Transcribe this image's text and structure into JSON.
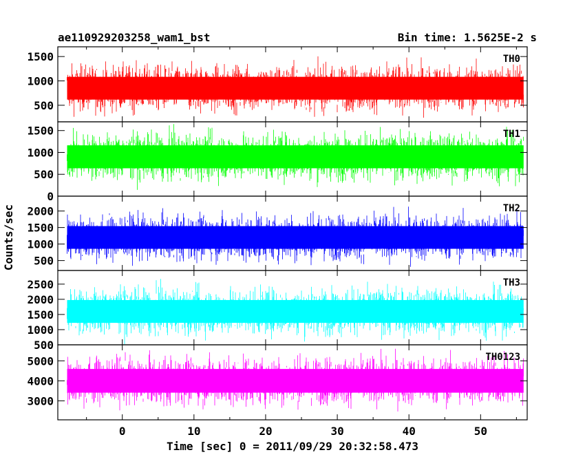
{
  "chart_data": {
    "type": "line",
    "title_left": "ae110929203258_wam1_bst",
    "title_right": "Bin time: 1.5625E-2 s",
    "xlabel": "Time [sec] 0 = 2011/09/29 20:32:58.473",
    "ylabel": "Counts/sec",
    "xlim": [
      -9,
      56.5
    ],
    "x_ticks": [
      0,
      10,
      20,
      30,
      40,
      50
    ],
    "x_tick_labels": [
      "0",
      "10",
      "20",
      "30",
      "40",
      "50"
    ],
    "x_data_range": [
      -7.7,
      56
    ],
    "panels": [
      {
        "name": "TH0",
        "color": "#ff0000",
        "ylim": [
          160,
          1700
        ],
        "ticks": [
          500,
          1000,
          1500
        ],
        "tick_labels": [
          "500",
          "1000",
          "1500"
        ],
        "mean": 850,
        "low": 220,
        "high": 1600
      },
      {
        "name": "TH1",
        "color": "#00ff00",
        "ylim": [
          0,
          1700
        ],
        "ticks": [
          0,
          500,
          1000,
          1500
        ],
        "tick_labels": [
          "0",
          "500",
          "1000",
          "1500"
        ],
        "mean": 900,
        "low": 100,
        "high": 1650
      },
      {
        "name": "TH2",
        "color": "#0000ff",
        "ylim": [
          200,
          2450
        ],
        "ticks": [
          500,
          1000,
          1500,
          2000
        ],
        "tick_labels": [
          "500",
          "1000",
          "1500",
          "2000"
        ],
        "mean": 1200,
        "low": 320,
        "high": 2350
      },
      {
        "name": "TH3",
        "color": "#00ffff",
        "ylim": [
          500,
          2950
        ],
        "ticks": [
          500,
          1000,
          1500,
          2000,
          2500
        ],
        "tick_labels": [
          "500",
          "1000",
          "1500",
          "2000",
          "2500"
        ],
        "mean": 1600,
        "low": 580,
        "high": 2800
      },
      {
        "name": "TH0123",
        "color": "#ff00ff",
        "ylim": [
          2050,
          5800
        ],
        "ticks": [
          3000,
          4000,
          5000
        ],
        "tick_labels": [
          "3000",
          "4000",
          "5000"
        ],
        "mean": 4000,
        "low": 2150,
        "high": 5650
      }
    ]
  }
}
